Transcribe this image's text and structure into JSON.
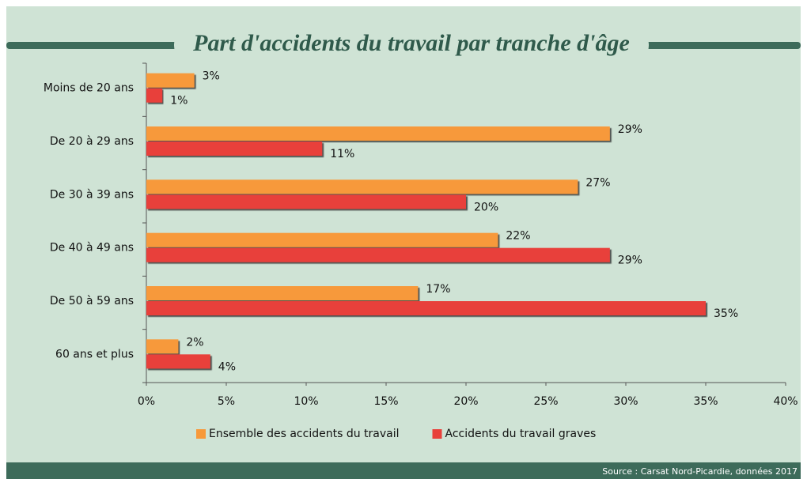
{
  "chart_data": {
    "type": "bar",
    "orientation": "horizontal",
    "title": "Part d'accidents du travail par tranche d'âge",
    "categories": [
      "Moins de 20 ans",
      "De 20 à 29 ans",
      "De 30 à 39 ans",
      "De 40 à 49 ans",
      "De 50 à 59 ans",
      "60 ans et plus"
    ],
    "series": [
      {
        "name": "Ensemble des accidents du travail",
        "color": "#f7993a",
        "values": [
          3,
          29,
          27,
          22,
          17,
          2
        ],
        "value_labels": [
          "3%",
          "29%",
          "27%",
          "22%",
          "17%",
          "2%"
        ]
      },
      {
        "name": "Accidents du travail graves",
        "color": "#e8413b",
        "values": [
          1,
          11,
          20,
          29,
          35,
          4
        ],
        "value_labels": [
          "1%",
          "11%",
          "20%",
          "29%",
          "35%",
          "4%"
        ]
      }
    ],
    "xlim": [
      0,
      40
    ],
    "xticks": [
      {
        "value": 0,
        "label": "0%"
      },
      {
        "value": 5,
        "label": "5%"
      },
      {
        "value": 10,
        "label": "10%"
      },
      {
        "value": 15,
        "label": "15%"
      },
      {
        "value": 20,
        "label": "20%"
      },
      {
        "value": 25,
        "label": "25%"
      },
      {
        "value": 30,
        "label": "30%"
      },
      {
        "value": 35,
        "label": "35%"
      },
      {
        "value": 40,
        "label": "40%"
      }
    ],
    "grid": false,
    "legend": "bottom",
    "source": "Source : Carsat Nord-Picardie, données 2017"
  }
}
